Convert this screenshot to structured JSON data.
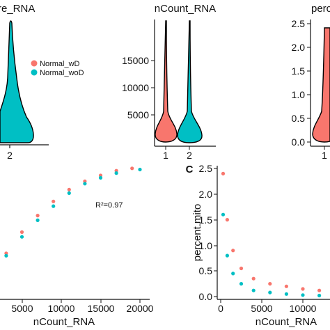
{
  "colors": {
    "wD": "#f8766d",
    "woD": "#00bfc4",
    "axis": "#111111"
  },
  "legend": {
    "items": [
      {
        "label": "Normal_wD",
        "color": "#f8766d"
      },
      {
        "label": "Normal_woD",
        "color": "#00bfc4"
      }
    ]
  },
  "chart_data": [
    {
      "type": "violin",
      "title": "re_RNA",
      "categories": [
        "2"
      ],
      "series": [
        {
          "name": "Normal_woD",
          "category": "2"
        }
      ]
    },
    {
      "type": "violin",
      "title": "nCount_RNA",
      "categories": [
        "1",
        "2"
      ],
      "yticks": [
        5000,
        10000,
        15000
      ],
      "ylim": [
        0,
        19500
      ],
      "series": [
        {
          "name": "Normal_wD",
          "category": "1",
          "min": 0,
          "max": 19000,
          "median": 2600
        },
        {
          "name": "Normal_woD",
          "category": "2",
          "min": 0,
          "max": 19000,
          "median": 3000
        }
      ]
    },
    {
      "type": "violin",
      "title": "perc",
      "categories": [
        "1"
      ],
      "yticks": [
        0.0,
        0.5,
        1.0,
        1.5,
        2.0,
        2.5
      ],
      "ylim": [
        0,
        2.6
      ],
      "series": [
        {
          "name": "Normal_wD",
          "category": "1",
          "min": 0,
          "max": 2.55,
          "median": 0.35
        }
      ]
    },
    {
      "type": "scatter",
      "xlabel": "nCount_RNA",
      "xticks": [
        5000,
        10000,
        15000,
        20000
      ],
      "xlim": [
        0,
        21500
      ],
      "ylim": [
        0,
        6000
      ],
      "annotation": "R²=0.97",
      "series": [
        {
          "name": "Normal_wD",
          "points": [
            [
              1500,
              900
            ],
            [
              3000,
              1800
            ],
            [
              5000,
              2700
            ],
            [
              7000,
              3400
            ],
            [
              9000,
              4000
            ],
            [
              11000,
              4500
            ],
            [
              13000,
              4850
            ],
            [
              15000,
              5100
            ],
            [
              17000,
              5300
            ],
            [
              19000,
              5400
            ]
          ]
        },
        {
          "name": "Normal_woD",
          "points": [
            [
              1500,
              850
            ],
            [
              3000,
              1700
            ],
            [
              5000,
              2500
            ],
            [
              7000,
              3200
            ],
            [
              9000,
              3800
            ],
            [
              11000,
              4350
            ],
            [
              13000,
              4750
            ],
            [
              15000,
              5000
            ],
            [
              17000,
              5200
            ],
            [
              20000,
              5350
            ]
          ]
        }
      ]
    },
    {
      "type": "scatter",
      "panel": "C",
      "xlabel": "nCount_RNA",
      "ylabel": "percent.mito",
      "xticks": [
        0,
        5000,
        10000
      ],
      "yticks": [
        0.0,
        0.5,
        1.0,
        1.5,
        2.0,
        2.5
      ],
      "xlim": [
        0,
        14500
      ],
      "ylim": [
        0,
        2.6
      ],
      "series": [
        {
          "name": "Normal_wD",
          "points": [
            [
              300,
              2.4
            ],
            [
              800,
              1.5
            ],
            [
              1500,
              0.9
            ],
            [
              2500,
              0.55
            ],
            [
              4000,
              0.35
            ],
            [
              6000,
              0.25
            ],
            [
              8000,
              0.2
            ],
            [
              10000,
              0.15
            ],
            [
              12000,
              0.12
            ],
            [
              14000,
              0.1
            ]
          ]
        },
        {
          "name": "Normal_woD",
          "points": [
            [
              300,
              1.6
            ],
            [
              800,
              0.8
            ],
            [
              1500,
              0.45
            ],
            [
              2500,
              0.25
            ],
            [
              4000,
              0.12
            ],
            [
              6000,
              0.08
            ],
            [
              8000,
              0.05
            ],
            [
              10000,
              0.03
            ],
            [
              12000,
              0.02
            ],
            [
              14000,
              0.02
            ]
          ]
        }
      ]
    }
  ]
}
